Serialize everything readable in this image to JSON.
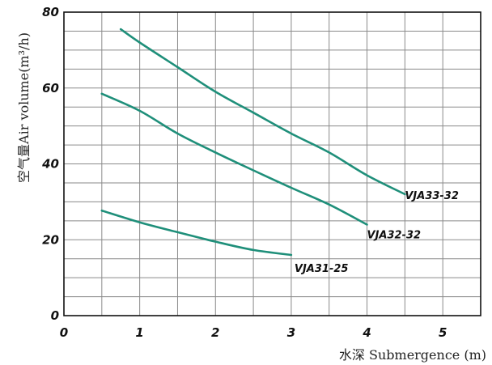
{
  "chart_data": {
    "type": "line",
    "title": "",
    "xlabel": "水深 Submergence (m)",
    "ylabel": "空气量Air volume(m³/h)",
    "xlim": [
      0,
      5.5
    ],
    "ylim": [
      0,
      80
    ],
    "x_ticks": [
      "0",
      "1",
      "2",
      "3",
      "4",
      "5"
    ],
    "y_ticks": [
      "0",
      "20",
      "40",
      "60",
      "80"
    ],
    "grid": true,
    "line_color": "#1f8f7a",
    "series": [
      {
        "name": "VJA33-32",
        "x": [
          0.75,
          1.0,
          1.5,
          2.0,
          2.5,
          3.0,
          3.5,
          4.0,
          4.5
        ],
        "y": [
          75.5,
          72,
          65.5,
          59,
          53.5,
          48,
          43,
          37,
          32
        ]
      },
      {
        "name": "VJA32-32",
        "x": [
          0.5,
          1.0,
          1.5,
          2.0,
          2.5,
          3.0,
          3.5,
          4.0
        ],
        "y": [
          58.5,
          54,
          48,
          43,
          38.3,
          33.7,
          29.3,
          24
        ]
      },
      {
        "name": "VJA31-25",
        "x": [
          0.5,
          1.0,
          1.5,
          2.0,
          2.5,
          3.0
        ],
        "y": [
          27.7,
          24.6,
          22,
          19.5,
          17.3,
          16
        ]
      }
    ]
  }
}
